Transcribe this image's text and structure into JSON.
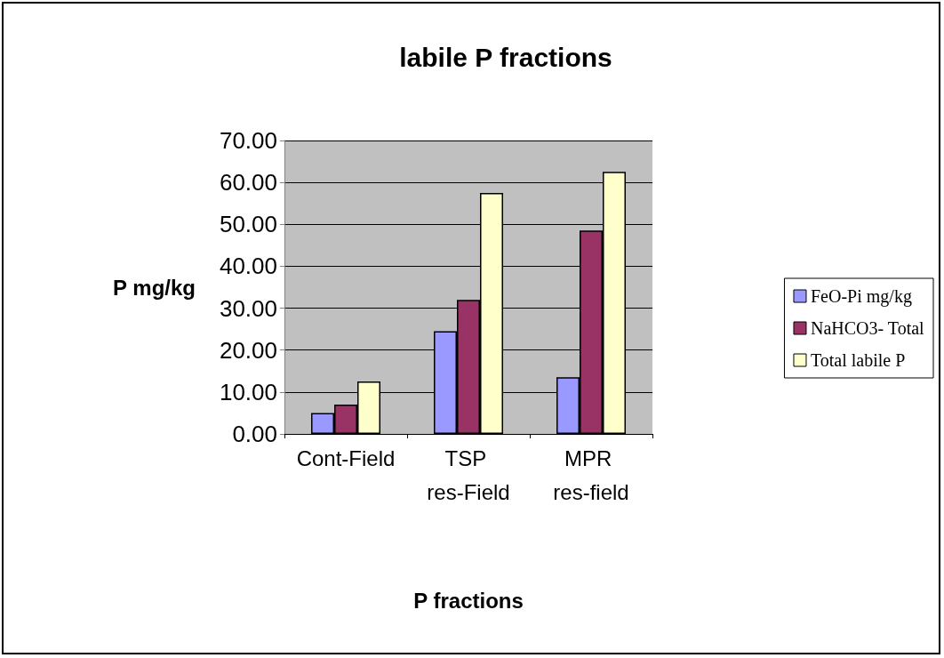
{
  "chart_data": {
    "type": "bar",
    "title": "labile P fractions",
    "xlabel": "P fractions",
    "ylabel": "P mg/kg",
    "categories": [
      "Cont-Field",
      "TSP res-Field",
      "MPR res-field"
    ],
    "series": [
      {
        "name": "FeO-Pi mg/kg",
        "color": "#9999ff",
        "values": [
          5,
          24.5,
          13.5
        ]
      },
      {
        "name": "NaHCO3- Total",
        "color": "#993366",
        "values": [
          7,
          32,
          48.5
        ]
      },
      {
        "name": "Total labile P",
        "color": "#ffffcc",
        "values": [
          12.5,
          57.5,
          62.5
        ]
      }
    ],
    "ylim": [
      0,
      70
    ],
    "yticks": [
      {
        "value": 0,
        "label": "0.00"
      },
      {
        "value": 10,
        "label": "10.00"
      },
      {
        "value": 20,
        "label": "20.00"
      },
      {
        "value": 30,
        "label": "30.00"
      },
      {
        "value": 40,
        "label": "40.00"
      },
      {
        "value": 50,
        "label": "50.00"
      },
      {
        "value": 60,
        "label": "60.00"
      },
      {
        "value": 70,
        "label": "70.00"
      }
    ],
    "grid": "y",
    "legend": "right"
  }
}
